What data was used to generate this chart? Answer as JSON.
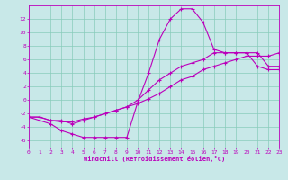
{
  "xlabel": "Windchill (Refroidissement éolien,°C)",
  "bg_color": "#c8e8e8",
  "grid_color": "#88ccbb",
  "line_color": "#bb00bb",
  "xlim": [
    0,
    23
  ],
  "ylim": [
    -7,
    14
  ],
  "xticks": [
    0,
    1,
    2,
    3,
    4,
    5,
    6,
    7,
    8,
    9,
    10,
    11,
    12,
    13,
    14,
    15,
    16,
    17,
    18,
    19,
    20,
    21,
    22,
    23
  ],
  "yticks": [
    -6,
    -4,
    -2,
    0,
    2,
    4,
    6,
    8,
    10,
    12
  ],
  "line1_x": [
    0,
    1,
    2,
    3,
    4,
    5,
    6,
    7,
    8,
    9,
    10,
    11,
    12,
    13,
    14,
    15,
    16,
    17,
    18,
    19,
    20,
    21,
    22,
    23
  ],
  "line1_y": [
    -2.5,
    -3.0,
    -3.5,
    -4.5,
    -5.0,
    -5.5,
    -5.5,
    -5.5,
    -5.5,
    -5.5,
    -0.3,
    4.0,
    9.0,
    12.0,
    13.5,
    13.5,
    11.5,
    7.5,
    7.0,
    7.0,
    7.0,
    7.0,
    5.0,
    5.0
  ],
  "line2_x": [
    0,
    1,
    2,
    3,
    4,
    5,
    6,
    7,
    8,
    9,
    10,
    11,
    12,
    13,
    14,
    15,
    16,
    17,
    18,
    19,
    20,
    21,
    22,
    23
  ],
  "line2_y": [
    -2.5,
    -2.5,
    -3.0,
    -3.2,
    -3.2,
    -2.8,
    -2.5,
    -2.0,
    -1.5,
    -1.0,
    -0.5,
    0.2,
    1.0,
    2.0,
    3.0,
    3.5,
    4.5,
    5.0,
    5.5,
    6.0,
    6.5,
    6.5,
    6.5,
    7.0
  ],
  "line3_x": [
    0,
    1,
    2,
    3,
    4,
    5,
    6,
    7,
    8,
    9,
    10,
    11,
    12,
    13,
    14,
    15,
    16,
    17,
    18,
    19,
    20,
    21,
    22,
    23
  ],
  "line3_y": [
    -2.5,
    -2.5,
    -3.0,
    -3.0,
    -3.5,
    -3.0,
    -2.5,
    -2.0,
    -1.5,
    -1.0,
    0.0,
    1.5,
    3.0,
    4.0,
    5.0,
    5.5,
    6.0,
    7.0,
    7.0,
    7.0,
    7.0,
    5.0,
    4.5,
    4.5
  ]
}
